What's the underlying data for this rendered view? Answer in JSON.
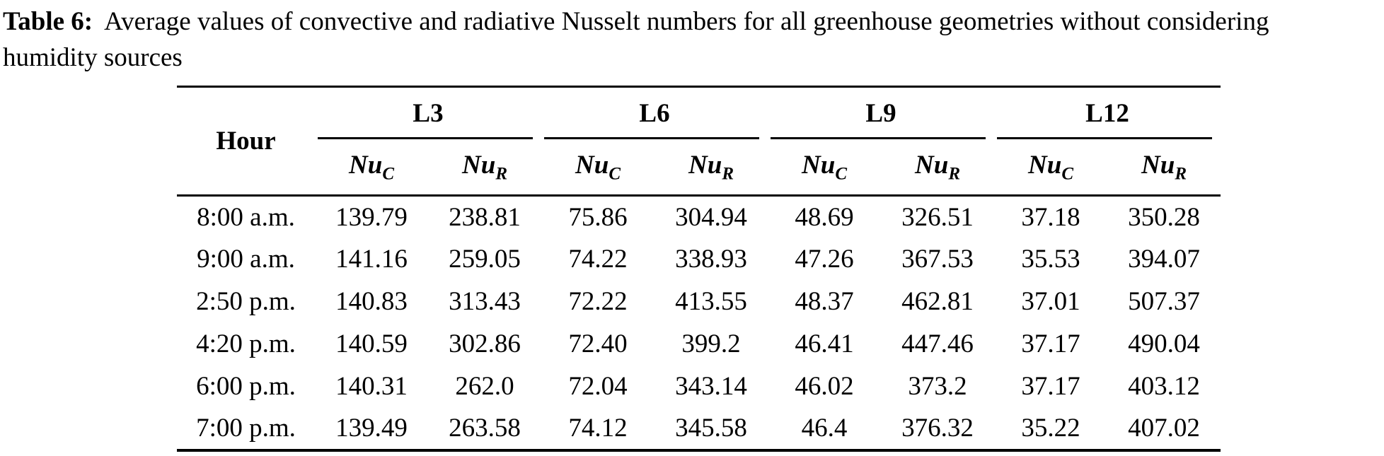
{
  "colors": {
    "text": "#000000",
    "background": "#ffffff"
  },
  "caption": {
    "label": "Table 6:",
    "line1": "Average values of convective and radiative Nusselt numbers for all greenhouse geometries without considering",
    "line2": "humidity sources"
  },
  "table": {
    "hour_header": "Hour",
    "groups": [
      {
        "label": "L3"
      },
      {
        "label": "L6"
      },
      {
        "label": "L9"
      },
      {
        "label": "L12"
      }
    ],
    "nu_c": {
      "base": "Nu",
      "sub": "C"
    },
    "nu_r": {
      "base": "Nu",
      "sub": "R"
    },
    "rows": [
      {
        "hour": "8:00 a.m.",
        "values": [
          "139.79",
          "238.81",
          "75.86",
          "304.94",
          "48.69",
          "326.51",
          "37.18",
          "350.28"
        ]
      },
      {
        "hour": "9:00 a.m.",
        "values": [
          "141.16",
          "259.05",
          "74.22",
          "338.93",
          "47.26",
          "367.53",
          "35.53",
          "394.07"
        ]
      },
      {
        "hour": "2:50 p.m.",
        "values": [
          "140.83",
          "313.43",
          "72.22",
          "413.55",
          "48.37",
          "462.81",
          "37.01",
          "507.37"
        ]
      },
      {
        "hour": "4:20 p.m.",
        "values": [
          "140.59",
          "302.86",
          "72.40",
          "399.2",
          "46.41",
          "447.46",
          "37.17",
          "490.04"
        ]
      },
      {
        "hour": "6:00 p.m.",
        "values": [
          "140.31",
          "262.0",
          "72.04",
          "343.14",
          "46.02",
          "373.2",
          "37.17",
          "403.12"
        ]
      },
      {
        "hour": "7:00 p.m.",
        "values": [
          "139.49",
          "263.58",
          "74.12",
          "345.58",
          "46.4",
          "376.32",
          "35.22",
          "407.02"
        ]
      }
    ]
  }
}
